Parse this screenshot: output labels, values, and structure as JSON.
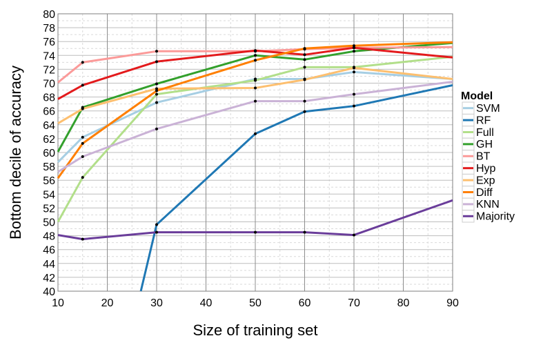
{
  "chart_data": {
    "type": "line",
    "xlabel": "Size of training set",
    "ylabel": "Bottom decile of accuracy",
    "xlim": [
      10,
      90
    ],
    "ylim": [
      40,
      80
    ],
    "xticks": [
      10,
      20,
      30,
      40,
      50,
      60,
      70,
      80,
      90
    ],
    "yticks": [
      40,
      42,
      44,
      46,
      48,
      50,
      52,
      54,
      56,
      58,
      60,
      62,
      64,
      66,
      68,
      70,
      72,
      74,
      76,
      78,
      80
    ],
    "grid": true,
    "legend_title": "Model",
    "legend_position": "right",
    "x": [
      10,
      15,
      30,
      50,
      60,
      70,
      90
    ],
    "series": [
      {
        "name": "SVM",
        "color": "#a6cee3",
        "values": [
          58.6,
          62.2,
          67.2,
          70.6,
          70.6,
          71.6,
          70.6
        ]
      },
      {
        "name": "RF",
        "color": "#1f78b4",
        "values": [
          null,
          null,
          49.6,
          62.7,
          65.9,
          66.7,
          69.7
        ]
      },
      {
        "name": "Full",
        "color": "#b2df8a",
        "values": [
          50.0,
          56.4,
          68.4,
          70.4,
          72.3,
          72.3,
          73.8
        ]
      },
      {
        "name": "GH",
        "color": "#33a02c",
        "values": [
          60.1,
          66.5,
          69.9,
          74.0,
          73.4,
          74.6,
          75.8
        ]
      },
      {
        "name": "BT",
        "color": "#fb9a99",
        "values": [
          70.1,
          73.0,
          74.6,
          74.6,
          74.9,
          75.1,
          75.2
        ]
      },
      {
        "name": "Hyp",
        "color": "#e31a1c",
        "values": [
          67.7,
          69.7,
          73.1,
          74.7,
          74.1,
          75.1,
          73.7
        ]
      },
      {
        "name": "Exp",
        "color": "#fdbf6f",
        "values": [
          64.2,
          66.3,
          69.2,
          69.3,
          70.5,
          72.2,
          70.6
        ]
      },
      {
        "name": "Diff",
        "color": "#ff7f00",
        "values": [
          56.3,
          61.3,
          68.9,
          73.3,
          75.0,
          75.4,
          75.9
        ]
      },
      {
        "name": "KNN",
        "color": "#cab2d6",
        "values": [
          57.2,
          59.4,
          63.4,
          67.4,
          67.4,
          68.4,
          70.2
        ]
      },
      {
        "name": "Majority",
        "color": "#6a3d9a",
        "values": [
          48.1,
          47.5,
          48.5,
          48.5,
          48.5,
          48.1,
          53.1
        ]
      }
    ],
    "rf_entry_point": {
      "x": 26.8,
      "y": 40
    }
  }
}
